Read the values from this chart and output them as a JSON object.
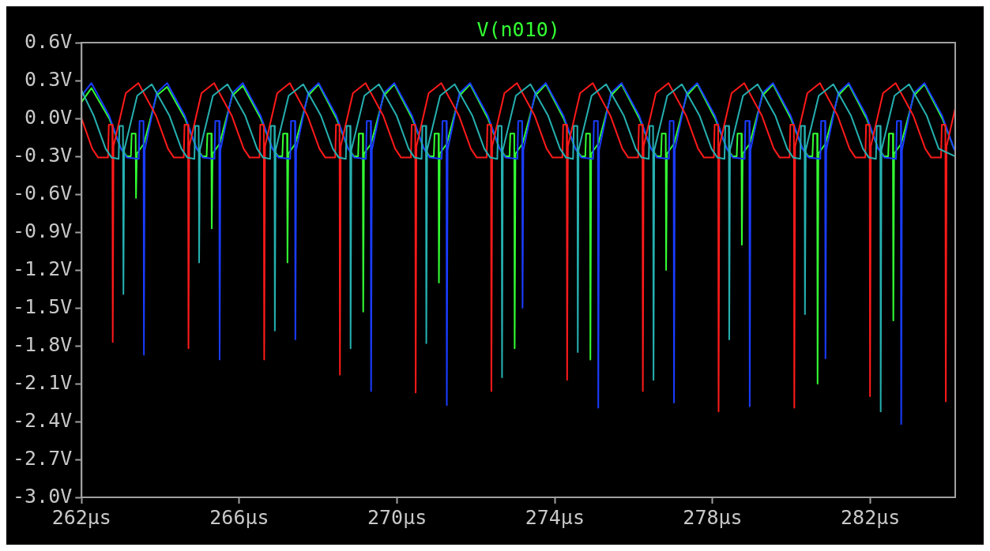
{
  "chart_data": {
    "type": "line",
    "xlim": [
      262,
      284.15
    ],
    "ylim": [
      -3.0,
      0.6
    ],
    "xticks": [
      {
        "value": 262,
        "label": "262µs"
      },
      {
        "value": 266,
        "label": "266µs"
      },
      {
        "value": 270,
        "label": "270µs"
      },
      {
        "value": 274,
        "label": "274µs"
      },
      {
        "value": 278,
        "label": "278µs"
      },
      {
        "value": 282,
        "label": "282µs"
      }
    ],
    "yticks": [
      {
        "value": 0.6,
        "label": "0.6V"
      },
      {
        "value": 0.3,
        "label": "0.3V"
      },
      {
        "value": 0.0,
        "label": "0.0V"
      },
      {
        "value": -0.3,
        "label": "-0.3V"
      },
      {
        "value": -0.6,
        "label": "-0.6V"
      },
      {
        "value": -0.9,
        "label": "-0.9V"
      },
      {
        "value": -1.2,
        "label": "-1.2V"
      },
      {
        "value": -1.5,
        "label": "-1.5V"
      },
      {
        "value": -1.8,
        "label": "-1.8V"
      },
      {
        "value": -2.1,
        "label": "-2.1V"
      },
      {
        "value": -2.4,
        "label": "-2.4V"
      },
      {
        "value": -2.7,
        "label": "-2.7V"
      },
      {
        "value": -3.0,
        "label": "-3.0V"
      }
    ],
    "grid": false,
    "legend": "top",
    "marker": "none",
    "line_style": "solid",
    "series": [
      {
        "name": "V(n010)",
        "color": "#33ff33",
        "x": [
          262.0,
          262.25,
          262.7,
          263.0,
          263.15,
          263.25,
          263.27,
          263.37,
          263.38,
          263.4,
          263.58,
          263.9,
          264.17,
          264.62,
          264.92,
          265.07,
          265.17,
          265.19,
          265.29,
          265.3,
          265.32,
          265.5,
          265.82,
          266.09,
          266.54,
          266.84,
          266.99,
          267.09,
          267.11,
          267.21,
          267.22,
          267.24,
          267.42,
          267.74,
          268.01,
          268.46,
          268.76,
          268.91,
          269.01,
          269.03,
          269.13,
          269.14,
          269.16,
          269.34,
          269.66,
          269.93,
          270.38,
          270.68,
          270.83,
          270.93,
          270.95,
          271.05,
          271.06,
          271.08,
          271.26,
          271.58,
          271.85,
          272.3,
          272.6,
          272.75,
          272.85,
          272.87,
          272.97,
          272.98,
          273.0,
          273.18,
          273.5,
          273.77,
          274.22,
          274.52,
          274.67,
          274.77,
          274.79,
          274.89,
          274.9,
          274.92,
          275.1,
          275.42,
          275.69,
          276.14,
          276.44,
          276.59,
          276.69,
          276.71,
          276.81,
          276.82,
          276.84,
          277.02,
          277.34,
          277.61,
          278.06,
          278.36,
          278.51,
          278.61,
          278.63,
          278.73,
          278.74,
          278.76,
          278.94,
          279.26,
          279.53,
          279.98,
          280.28,
          280.43,
          280.53,
          280.55,
          280.65,
          280.66,
          280.68,
          280.86,
          281.18,
          281.45,
          281.9,
          282.2,
          282.35,
          282.45,
          282.47,
          282.57,
          282.58,
          282.6,
          282.78,
          283.1,
          283.37,
          283.82,
          284.12
        ],
        "values": [
          0.13,
          0.24,
          0.0,
          -0.24,
          -0.3,
          -0.3,
          -0.12,
          -0.12,
          -0.63,
          -0.28,
          -0.2,
          0.18,
          0.25,
          0.0,
          -0.24,
          -0.3,
          -0.3,
          -0.12,
          -0.12,
          -0.87,
          -0.28,
          -0.2,
          0.18,
          0.26,
          0.0,
          -0.24,
          -0.3,
          -0.3,
          -0.12,
          -0.12,
          -1.14,
          -0.28,
          -0.2,
          0.18,
          0.27,
          0.0,
          -0.24,
          -0.3,
          -0.3,
          -0.12,
          -0.12,
          -1.53,
          -0.28,
          -0.2,
          0.18,
          0.27,
          0.0,
          -0.24,
          -0.3,
          -0.3,
          -0.12,
          -0.12,
          -1.3,
          -0.28,
          -0.2,
          0.18,
          0.27,
          0.0,
          -0.24,
          -0.3,
          -0.3,
          -0.12,
          -0.12,
          -1.82,
          -0.28,
          -0.2,
          0.18,
          0.27,
          0.0,
          -0.24,
          -0.3,
          -0.3,
          -0.12,
          -0.12,
          -1.91,
          -0.28,
          -0.2,
          0.18,
          0.27,
          0.0,
          -0.24,
          -0.3,
          -0.3,
          -0.12,
          -0.12,
          -1.2,
          -0.28,
          -0.2,
          0.18,
          0.27,
          0.0,
          -0.24,
          -0.3,
          -0.3,
          -0.12,
          -0.12,
          -1.0,
          -0.28,
          -0.2,
          0.18,
          0.27,
          0.0,
          -0.24,
          -0.3,
          -0.3,
          -0.12,
          -0.12,
          -2.1,
          -0.28,
          -0.2,
          0.18,
          0.27,
          0.0,
          -0.24,
          -0.3,
          -0.3,
          -0.12,
          -0.12,
          -1.6,
          -0.28,
          -0.2,
          0.18,
          0.27,
          0.0,
          -0.24
        ]
      },
      {
        "color": "#1a3cff",
        "x": [
          262.0,
          262.25,
          262.7,
          263.0,
          263.15,
          263.45,
          263.47,
          263.57,
          263.58,
          263.6,
          263.9,
          264.17,
          264.62,
          264.92,
          265.07,
          265.37,
          265.39,
          265.49,
          265.5,
          265.52,
          265.82,
          266.09,
          266.54,
          266.84,
          266.99,
          267.29,
          267.31,
          267.41,
          267.42,
          267.44,
          267.74,
          268.01,
          268.46,
          268.76,
          268.91,
          269.21,
          269.23,
          269.33,
          269.34,
          269.36,
          269.66,
          269.93,
          270.38,
          270.68,
          270.83,
          271.13,
          271.15,
          271.25,
          271.26,
          271.28,
          271.58,
          271.85,
          272.3,
          272.6,
          272.75,
          273.05,
          273.07,
          273.17,
          273.18,
          273.2,
          273.5,
          273.77,
          274.22,
          274.52,
          274.67,
          274.97,
          274.99,
          275.09,
          275.1,
          275.12,
          275.42,
          275.69,
          276.14,
          276.44,
          276.59,
          276.89,
          276.91,
          277.01,
          277.02,
          277.04,
          277.34,
          277.61,
          278.06,
          278.36,
          278.51,
          278.81,
          278.83,
          278.93,
          278.94,
          278.96,
          279.26,
          279.53,
          279.98,
          280.28,
          280.43,
          280.73,
          280.75,
          280.85,
          280.86,
          280.88,
          281.18,
          281.45,
          281.9,
          282.2,
          282.35,
          282.65,
          282.67,
          282.77,
          282.78,
          282.8,
          283.1,
          283.37,
          283.82,
          284.12,
          284.15
        ],
        "values": [
          0.18,
          0.28,
          0.02,
          -0.24,
          -0.31,
          -0.32,
          -0.02,
          -0.02,
          -1.87,
          -0.25,
          0.2,
          0.28,
          0.02,
          -0.24,
          -0.31,
          -0.32,
          -0.02,
          -0.02,
          -1.91,
          -0.25,
          0.2,
          0.28,
          0.02,
          -0.24,
          -0.31,
          -0.32,
          -0.02,
          -0.02,
          -1.75,
          -0.25,
          0.2,
          0.28,
          0.02,
          -0.24,
          -0.31,
          -0.32,
          -0.02,
          -0.02,
          -2.16,
          -0.25,
          0.2,
          0.28,
          0.02,
          -0.24,
          -0.31,
          -0.32,
          -0.02,
          -0.02,
          -2.27,
          -0.25,
          0.2,
          0.28,
          0.02,
          -0.24,
          -0.31,
          -0.32,
          -0.02,
          -0.02,
          -1.5,
          -0.25,
          0.2,
          0.28,
          0.02,
          -0.24,
          -0.31,
          -0.32,
          -0.02,
          -0.02,
          -2.29,
          -0.25,
          0.2,
          0.28,
          0.02,
          -0.24,
          -0.31,
          -0.32,
          -0.02,
          -0.02,
          -2.25,
          -0.25,
          0.2,
          0.28,
          0.02,
          -0.24,
          -0.31,
          -0.32,
          -0.02,
          -0.02,
          -2.28,
          -0.25,
          0.2,
          0.28,
          0.02,
          -0.24,
          -0.31,
          -0.32,
          -0.02,
          -0.02,
          -1.9,
          -0.25,
          0.2,
          0.28,
          0.02,
          -0.24,
          -0.31,
          -0.32,
          -0.02,
          -0.02,
          -2.42,
          -0.25,
          0.2,
          0.28,
          0.02,
          -0.24,
          -0.26
        ]
      },
      {
        "color": "#ff1a1a",
        "x": [
          262.0,
          262.27,
          262.42,
          262.67,
          262.69,
          262.78,
          262.79,
          262.81,
          263.12,
          263.44,
          263.89,
          264.19,
          264.34,
          264.59,
          264.61,
          264.7,
          264.71,
          264.73,
          265.04,
          265.36,
          265.81,
          266.11,
          266.26,
          266.51,
          266.53,
          266.62,
          266.63,
          266.65,
          266.96,
          267.28,
          267.73,
          268.03,
          268.18,
          268.43,
          268.45,
          268.54,
          268.55,
          268.57,
          268.88,
          269.2,
          269.65,
          269.95,
          270.1,
          270.35,
          270.37,
          270.46,
          270.47,
          270.49,
          270.8,
          271.12,
          271.57,
          271.87,
          272.02,
          272.27,
          272.29,
          272.38,
          272.39,
          272.41,
          272.72,
          273.04,
          273.49,
          273.79,
          273.94,
          274.19,
          274.21,
          274.3,
          274.31,
          274.33,
          274.64,
          274.96,
          275.41,
          275.71,
          275.86,
          276.11,
          276.13,
          276.22,
          276.23,
          276.25,
          276.56,
          276.88,
          277.33,
          277.63,
          277.78,
          278.03,
          278.05,
          278.14,
          278.15,
          278.17,
          278.48,
          278.8,
          279.25,
          279.55,
          279.7,
          279.95,
          279.97,
          280.06,
          280.07,
          280.09,
          280.4,
          280.72,
          281.17,
          281.47,
          281.62,
          281.87,
          281.89,
          281.98,
          281.99,
          282.01,
          282.32,
          282.64,
          283.09,
          283.39,
          283.54,
          283.79,
          283.81,
          283.9,
          283.91,
          283.93,
          284.15
        ],
        "values": [
          0.0,
          -0.24,
          -0.31,
          -0.31,
          -0.05,
          -0.05,
          -1.77,
          -0.22,
          0.2,
          0.28,
          0.02,
          -0.24,
          -0.31,
          -0.31,
          -0.05,
          -0.05,
          -1.82,
          -0.22,
          0.2,
          0.28,
          0.02,
          -0.24,
          -0.31,
          -0.31,
          -0.05,
          -0.05,
          -1.91,
          -0.22,
          0.2,
          0.28,
          0.02,
          -0.24,
          -0.31,
          -0.31,
          -0.05,
          -0.05,
          -2.03,
          -0.22,
          0.2,
          0.28,
          0.02,
          -0.24,
          -0.31,
          -0.31,
          -0.05,
          -0.05,
          -2.17,
          -0.22,
          0.2,
          0.28,
          0.02,
          -0.24,
          -0.31,
          -0.31,
          -0.05,
          -0.05,
          -2.16,
          -0.22,
          0.2,
          0.28,
          0.02,
          -0.24,
          -0.31,
          -0.31,
          -0.05,
          -0.05,
          -2.07,
          -0.22,
          0.2,
          0.28,
          0.02,
          -0.24,
          -0.31,
          -0.31,
          -0.05,
          -0.05,
          -2.16,
          -0.22,
          0.2,
          0.28,
          0.02,
          -0.24,
          -0.31,
          -0.31,
          -0.05,
          -0.05,
          -2.32,
          -0.22,
          0.2,
          0.28,
          0.02,
          -0.24,
          -0.31,
          -0.31,
          -0.05,
          -0.05,
          -2.29,
          -0.22,
          0.2,
          0.28,
          0.02,
          -0.24,
          -0.31,
          -0.31,
          -0.05,
          -0.05,
          -2.2,
          -0.22,
          0.2,
          0.28,
          0.02,
          -0.24,
          -0.31,
          -0.31,
          -0.05,
          -0.05,
          -2.24,
          -0.22,
          0.08
        ]
      },
      {
        "color": "#26b0b0",
        "x": [
          262.0,
          262.31,
          262.61,
          262.76,
          262.94,
          262.96,
          263.05,
          263.06,
          263.08,
          263.41,
          263.78,
          264.23,
          264.53,
          264.68,
          264.86,
          264.88,
          264.97,
          264.98,
          265.0,
          265.33,
          265.7,
          266.15,
          266.45,
          266.6,
          266.78,
          266.8,
          266.89,
          266.9,
          266.92,
          267.25,
          267.62,
          268.07,
          268.37,
          268.52,
          268.7,
          268.72,
          268.81,
          268.82,
          268.84,
          269.17,
          269.54,
          269.99,
          270.29,
          270.44,
          270.62,
          270.64,
          270.73,
          270.74,
          270.76,
          271.09,
          271.46,
          271.91,
          272.21,
          272.36,
          272.54,
          272.56,
          272.65,
          272.66,
          272.68,
          273.01,
          273.38,
          273.83,
          274.13,
          274.28,
          274.46,
          274.48,
          274.57,
          274.58,
          274.6,
          274.93,
          275.3,
          275.75,
          276.05,
          276.2,
          276.38,
          276.4,
          276.49,
          276.5,
          276.52,
          276.85,
          277.22,
          277.67,
          277.97,
          278.12,
          278.3,
          278.32,
          278.41,
          278.42,
          278.44,
          278.77,
          279.14,
          279.59,
          279.89,
          280.04,
          280.22,
          280.24,
          280.33,
          280.34,
          280.36,
          280.69,
          281.06,
          281.51,
          281.81,
          281.96,
          282.14,
          282.16,
          282.25,
          282.26,
          282.28,
          282.61,
          282.98,
          283.43,
          283.73,
          284.15
        ],
        "values": [
          0.22,
          0.02,
          -0.24,
          -0.31,
          -0.32,
          -0.06,
          -0.06,
          -1.39,
          -0.25,
          0.18,
          0.27,
          0.02,
          -0.24,
          -0.31,
          -0.32,
          -0.06,
          -0.06,
          -1.14,
          -0.25,
          0.18,
          0.27,
          0.02,
          -0.24,
          -0.31,
          -0.32,
          -0.06,
          -0.06,
          -1.68,
          -0.25,
          0.18,
          0.27,
          0.02,
          -0.24,
          -0.31,
          -0.32,
          -0.06,
          -0.06,
          -1.82,
          -0.25,
          0.18,
          0.27,
          0.02,
          -0.24,
          -0.31,
          -0.32,
          -0.06,
          -0.06,
          -1.78,
          -0.25,
          0.18,
          0.27,
          0.02,
          -0.24,
          -0.31,
          -0.32,
          -0.06,
          -0.06,
          -2.05,
          -0.25,
          0.18,
          0.27,
          0.02,
          -0.24,
          -0.31,
          -0.32,
          -0.06,
          -0.06,
          -1.85,
          -0.25,
          0.18,
          0.27,
          0.02,
          -0.24,
          -0.31,
          -0.32,
          -0.06,
          -0.06,
          -2.07,
          -0.25,
          0.18,
          0.27,
          0.02,
          -0.24,
          -0.31,
          -0.32,
          -0.06,
          -0.06,
          -1.75,
          -0.25,
          0.18,
          0.27,
          0.02,
          -0.24,
          -0.31,
          -0.32,
          -0.06,
          -0.06,
          -1.55,
          -0.25,
          0.18,
          0.27,
          0.02,
          -0.24,
          -0.31,
          -0.32,
          -0.06,
          -0.06,
          -2.32,
          -0.25,
          0.18,
          0.27,
          0.02,
          -0.24,
          -0.3
        ]
      }
    ]
  }
}
